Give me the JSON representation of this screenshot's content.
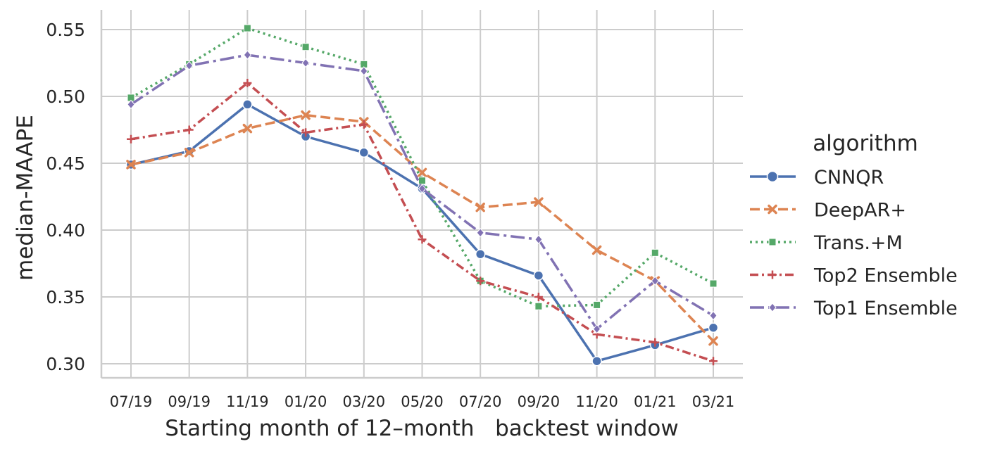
{
  "chart_data": {
    "type": "line",
    "title": "",
    "xlabel": "Starting month of 12–month   backtest window",
    "ylabel": "median-MAAPE",
    "categories": [
      "07/19",
      "09/19",
      "11/19",
      "01/20",
      "03/20",
      "05/20",
      "07/20",
      "09/20",
      "11/20",
      "01/21",
      "03/21"
    ],
    "yticks": [
      "0.30",
      "0.35",
      "0.40",
      "0.45",
      "0.50",
      "0.55"
    ],
    "ylim": [
      0.29,
      0.565
    ],
    "grid": true,
    "legend": {
      "title": "algorithm",
      "placement": "right"
    },
    "series": [
      {
        "name": "CNNQR",
        "color": "#4c72b0",
        "dash": "solid",
        "marker": "circle",
        "values": [
          0.449,
          0.459,
          0.494,
          0.47,
          0.458,
          0.431,
          0.382,
          0.366,
          0.302,
          0.314,
          0.327
        ]
      },
      {
        "name": "DeepAR+",
        "color": "#dd8452",
        "dash": "dashed",
        "marker": "x",
        "values": [
          0.449,
          0.458,
          0.476,
          0.486,
          0.481,
          0.443,
          0.417,
          0.421,
          0.385,
          0.362,
          0.317
        ]
      },
      {
        "name": "Trans.+M",
        "color": "#55a868",
        "dash": "dotted",
        "marker": "square",
        "values": [
          0.499,
          0.524,
          0.551,
          0.537,
          0.524,
          0.437,
          0.362,
          0.343,
          0.344,
          0.383,
          0.36
        ]
      },
      {
        "name": "Top2 Ensemble",
        "color": "#c44e52",
        "dash": "dashdot",
        "marker": "plus",
        "values": [
          0.468,
          0.475,
          0.51,
          0.473,
          0.479,
          0.393,
          0.362,
          0.35,
          0.322,
          0.316,
          0.302
        ]
      },
      {
        "name": "Top1 Ensemble",
        "color": "#8172b3",
        "dash": "longdashdot",
        "marker": "diamond",
        "values": [
          0.494,
          0.523,
          0.531,
          0.525,
          0.519,
          0.431,
          0.398,
          0.393,
          0.326,
          0.362,
          0.336
        ]
      }
    ]
  }
}
